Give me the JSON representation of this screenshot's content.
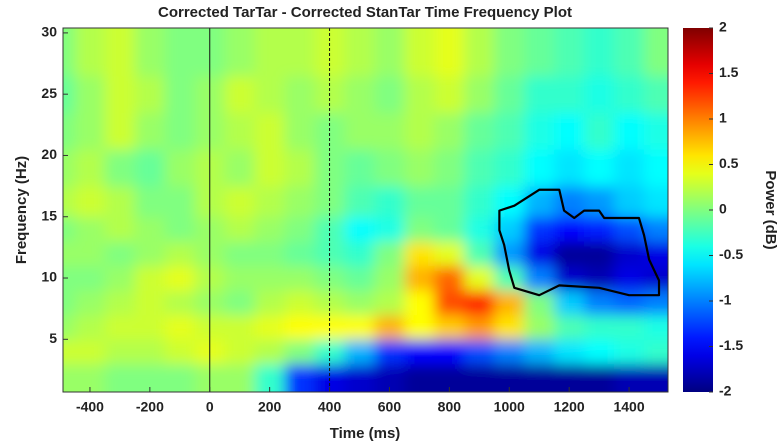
{
  "chart_data": {
    "type": "heatmap",
    "title": "Corrected TarTar - Corrected StanTar Time Frequency Plot",
    "xlabel": "Time (ms)",
    "ylabel": "Frequency (Hz)",
    "colorbar_label": "Power (dB)",
    "colormap": "jet",
    "x": [
      -500,
      -400,
      -300,
      -200,
      -100,
      0,
      100,
      200,
      300,
      400,
      500,
      600,
      700,
      800,
      900,
      1000,
      1100,
      1200,
      1300,
      1400,
      1500
    ],
    "y": [
      2,
      4,
      6,
      8,
      10,
      12,
      14,
      16,
      19,
      22,
      25,
      28
    ],
    "z": [
      [
        0.1,
        0.1,
        0,
        0,
        0,
        0.1,
        0.1,
        -0.3,
        -1.3,
        -1.6,
        -1.7,
        -1.8,
        -1.9,
        -1.9,
        -1.9,
        -1.9,
        -1.9,
        -1.9,
        -1.9,
        -1.8,
        -1.8
      ],
      [
        0.3,
        0.3,
        0.2,
        0.2,
        0.3,
        0.4,
        0.3,
        0.2,
        0,
        -0.3,
        -0.8,
        -1.3,
        -1.5,
        -1.5,
        -1.2,
        -1,
        -0.8,
        -0.6,
        -0.5,
        -0.4,
        -0.3
      ],
      [
        0.1,
        0.2,
        0.3,
        0.3,
        0.4,
        0.3,
        0.3,
        0.4,
        0.5,
        0.5,
        0.5,
        0.8,
        0.5,
        0.7,
        0.9,
        0.6,
        0.1,
        -0.2,
        -0.3,
        -0.3,
        -0.4
      ],
      [
        0,
        0.1,
        0.2,
        0.3,
        0.2,
        0.1,
        0,
        0.2,
        0.3,
        0.2,
        0.1,
        0.2,
        0.5,
        1.2,
        1.4,
        0.8,
        0,
        -0.7,
        -1,
        -1.1,
        -1
      ],
      [
        0,
        0,
        0.1,
        0.3,
        0.4,
        0.2,
        0.1,
        0.1,
        0.1,
        0,
        -0.1,
        0.1,
        0.8,
        1.1,
        0.4,
        -0.2,
        -1,
        -1.7,
        -1.8,
        -1.6,
        -1.7
      ],
      [
        0.1,
        0.1,
        0,
        0.1,
        0.2,
        0.1,
        0,
        0,
        -0.1,
        -0.2,
        -0.3,
        0,
        0.6,
        0.4,
        -0.2,
        -0.9,
        -1.6,
        -1.9,
        -1.9,
        -1.7,
        -1.6
      ],
      [
        0,
        0.1,
        0.2,
        0.1,
        0,
        0.1,
        0.2,
        0.1,
        0,
        -0.2,
        -0.5,
        -0.4,
        0,
        -0.1,
        -0.4,
        -0.7,
        -1.3,
        -1.5,
        -1.4,
        -1.2,
        -1
      ],
      [
        0.2,
        0.3,
        0.2,
        0,
        0,
        0.2,
        0.3,
        0.2,
        0.1,
        0,
        -0.2,
        -0.3,
        -0.1,
        -0.1,
        -0.3,
        -0.5,
        -0.8,
        -1,
        -0.9,
        -0.7,
        -0.6
      ],
      [
        0.1,
        0.2,
        0,
        -0.1,
        0.1,
        0.2,
        0.1,
        0.3,
        0.2,
        0,
        -0.1,
        0,
        0.1,
        0,
        -0.2,
        -0.3,
        -0.5,
        -0.6,
        -0.5,
        -0.6,
        -0.5
      ],
      [
        0,
        0.1,
        0.3,
        0.1,
        0,
        0.1,
        0.2,
        0.3,
        0.1,
        0,
        0.1,
        0.1,
        0.2,
        0.1,
        -0.1,
        -0.2,
        -0.4,
        -0.5,
        -0.3,
        -0.5,
        -0.4
      ],
      [
        -0.1,
        0.1,
        0.3,
        0.2,
        0,
        0.1,
        0.3,
        0.2,
        0.1,
        0.2,
        0.1,
        0,
        0.2,
        0.3,
        0.1,
        -0.1,
        -0.3,
        -0.3,
        -0.4,
        -0.3,
        -0.2
      ],
      [
        0,
        0.2,
        0.3,
        0.1,
        0,
        0,
        0.1,
        0.2,
        0.2,
        0.3,
        0.2,
        0.1,
        0.3,
        0.4,
        0.2,
        0,
        -0.1,
        -0.2,
        -0.3,
        -0.2,
        0
      ]
    ],
    "xlim": [
      -490,
      1530
    ],
    "ylim": [
      0.7,
      30.4
    ],
    "clim": [
      -2,
      2
    ],
    "xticks": [
      -400,
      -200,
      0,
      200,
      400,
      600,
      800,
      1000,
      1200,
      1400
    ],
    "yticks": [
      5,
      10,
      15,
      20,
      25,
      30
    ],
    "cticks": [
      -2,
      -1.5,
      -1,
      -0.5,
      0,
      0.5,
      1,
      1.5,
      2
    ],
    "vlines": [
      {
        "value": 0,
        "style": "solid"
      },
      {
        "value": 400,
        "style": "dashed"
      }
    ],
    "contour": {
      "x": [
        967,
        967,
        1017,
        1100,
        1167,
        1183,
        1217,
        1250,
        1300,
        1317,
        1433,
        1450,
        1467,
        1500,
        1500,
        1400,
        1300,
        1167,
        1100,
        1017,
        1000,
        983
      ],
      "y": [
        13.9,
        15.5,
        15.9,
        17.2,
        17.2,
        15.5,
        14.9,
        15.5,
        15.5,
        14.9,
        14.9,
        13.5,
        11.5,
        9.8,
        8.6,
        8.6,
        9.2,
        9.4,
        8.6,
        9.2,
        10.6,
        12.7
      ]
    }
  }
}
